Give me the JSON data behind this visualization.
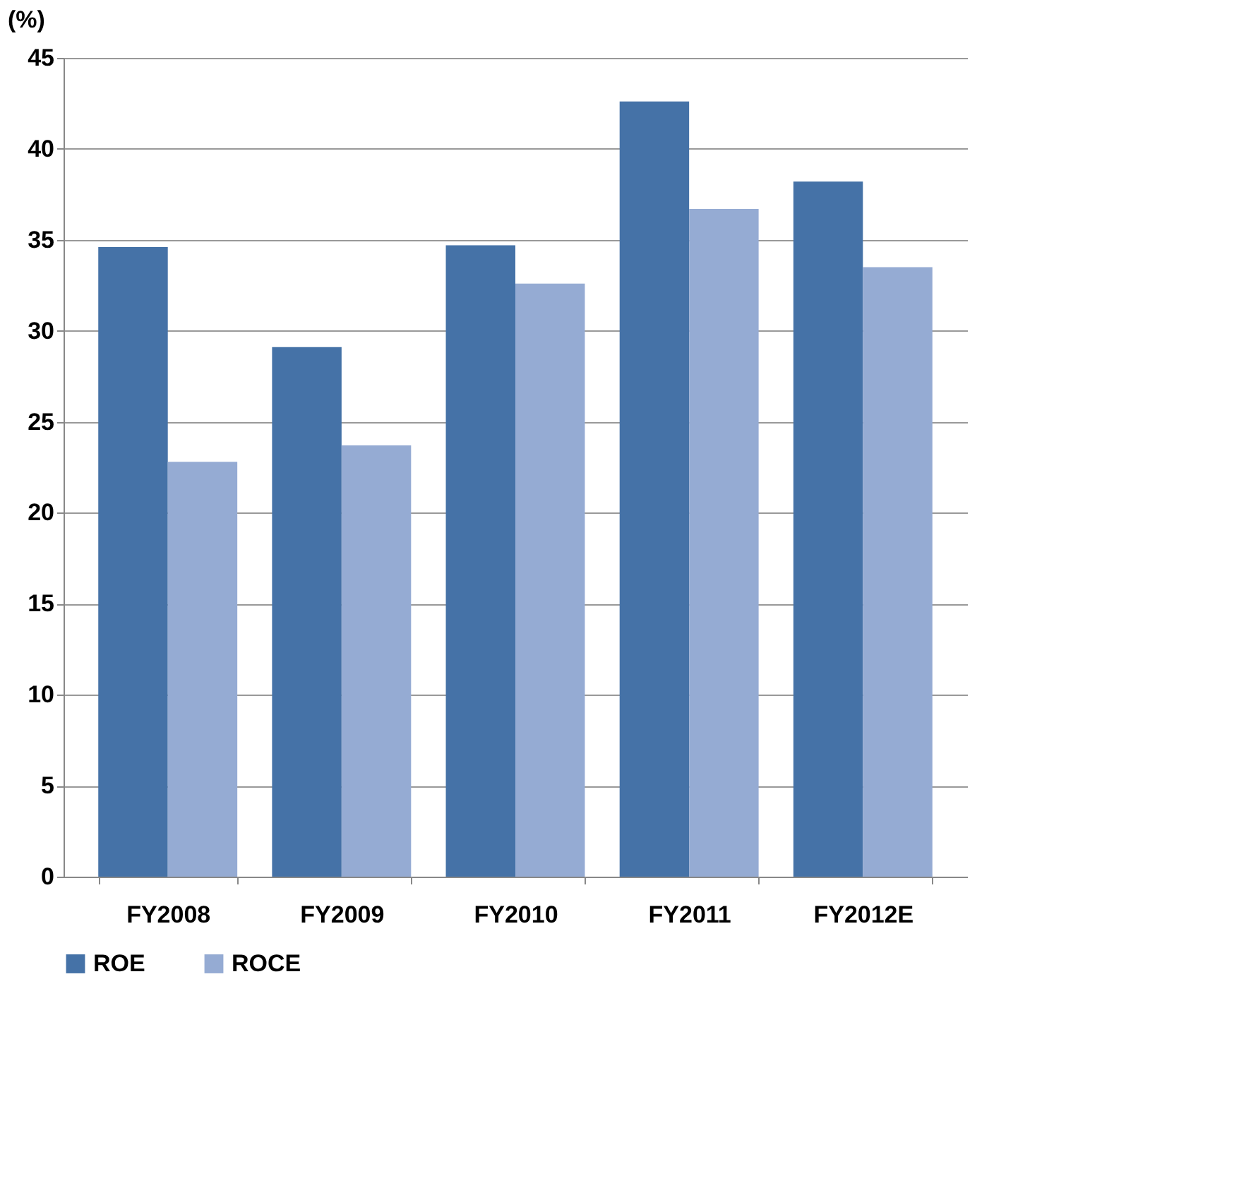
{
  "chart_data": {
    "type": "bar",
    "ylabel": "(%)",
    "categories": [
      "FY2008",
      "FY2009",
      "FY2010",
      "FY2011",
      "FY2012E"
    ],
    "series": [
      {
        "name": "ROE",
        "color": "#4572a7",
        "values": [
          34.6,
          29.1,
          34.7,
          42.6,
          38.2
        ]
      },
      {
        "name": "ROCE",
        "color": "#95abd3",
        "values": [
          22.8,
          23.7,
          32.6,
          36.7,
          33.5
        ]
      }
    ],
    "ylim": [
      0,
      45
    ],
    "yticks": [
      0,
      5,
      10,
      15,
      20,
      25,
      30,
      35,
      40,
      45
    ],
    "grid": "y",
    "legend": "bottom"
  }
}
